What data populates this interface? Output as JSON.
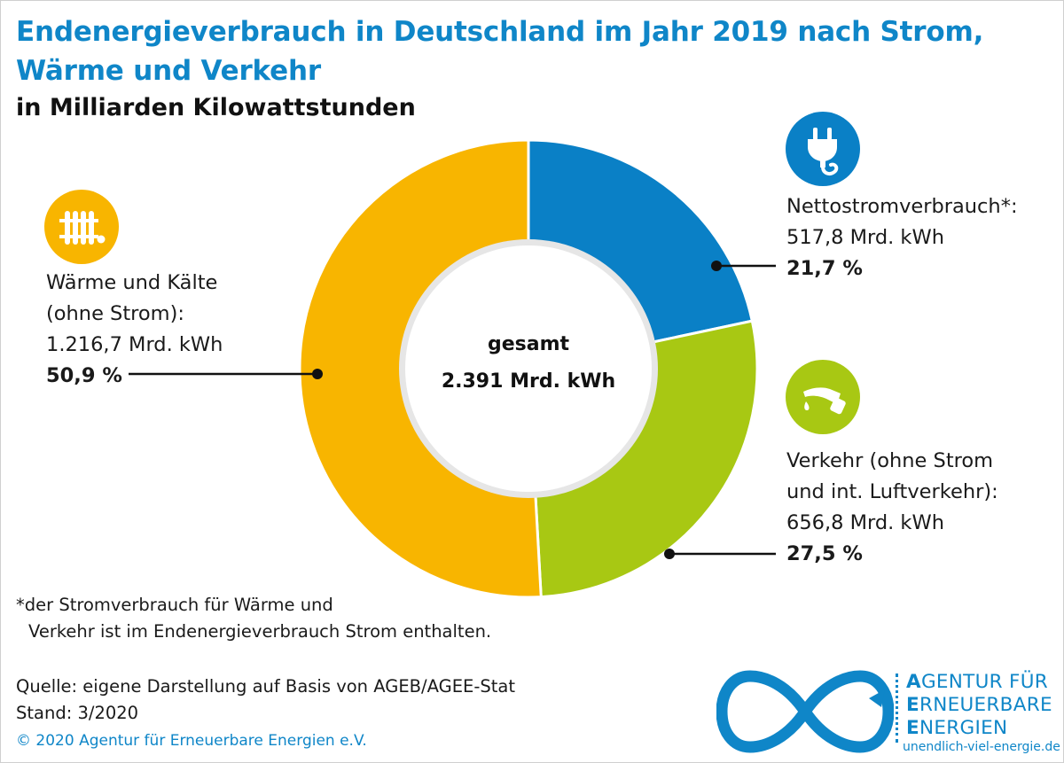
{
  "title_line1": "Endenergieverbrauch in Deutschland im Jahr 2019 nach Strom,",
  "title_line2": "Wärme und Verkehr",
  "subtitle": "in Milliarden Kilowattstunden",
  "center": {
    "line1": "gesamt",
    "line2": "2.391 Mrd. kWh"
  },
  "labels": {
    "strom": {
      "name": "Nettostromverbrauch*:",
      "value": "517,8 Mrd. kWh",
      "pct": "21,7 %"
    },
    "waerme": {
      "name1": "Wärme und Kälte",
      "name2": "(ohne Strom):",
      "value": "1.216,7 Mrd. kWh",
      "pct": "50,9 %"
    },
    "verkehr": {
      "name1": "Verkehr (ohne Strom",
      "name2": "und int. Luftverkehr):",
      "value": "656,8 Mrd. kWh",
      "pct": "27,5 %"
    }
  },
  "footnote_line1": "*der Stromverbrauch für Wärme und",
  "footnote_line2": "Verkehr ist im Endenergieverbrauch Strom enthalten.",
  "source_line1": "Quelle: eigene Darstellung auf Basis von AGEB/AGEE-Stat",
  "source_line2": "Stand: 3/2020",
  "copyright": "© 2020 Agentur für Erneuerbare Energien e.V.",
  "logo": {
    "line1_first": "A",
    "line1_rest": "GENTUR FÜR",
    "line2_first": "E",
    "line2_rest": "RNEUERBARE",
    "line3_first": "E",
    "line3_rest": "NERGIEN",
    "url": "unendlich-viel-energie.de"
  },
  "icons": {
    "strom": "power-plug-icon",
    "waerme": "radiator-icon",
    "verkehr": "fuel-nozzle-icon",
    "logo": "infinity-icon"
  },
  "colors": {
    "strom": "#0a80c6",
    "waerme": "#f8b500",
    "verkehr": "#a8c813",
    "title": "#0f86c8"
  },
  "chart_data": {
    "type": "pie",
    "title": "Endenergieverbrauch in Deutschland im Jahr 2019 nach Strom, Wärme und Verkehr",
    "subtitle": "in Milliarden Kilowattstunden",
    "total": "2.391 Mrd. kWh",
    "slices": [
      {
        "name": "Nettostromverbrauch*",
        "value": 517.8,
        "percent": 21.7,
        "color": "#0a80c6"
      },
      {
        "name": "Verkehr (ohne Strom und int. Luftverkehr)",
        "value": 656.8,
        "percent": 27.5,
        "color": "#a8c813"
      },
      {
        "name": "Wärme und Kälte (ohne Strom)",
        "value": 1216.7,
        "percent": 50.9,
        "color": "#f8b500"
      }
    ]
  }
}
